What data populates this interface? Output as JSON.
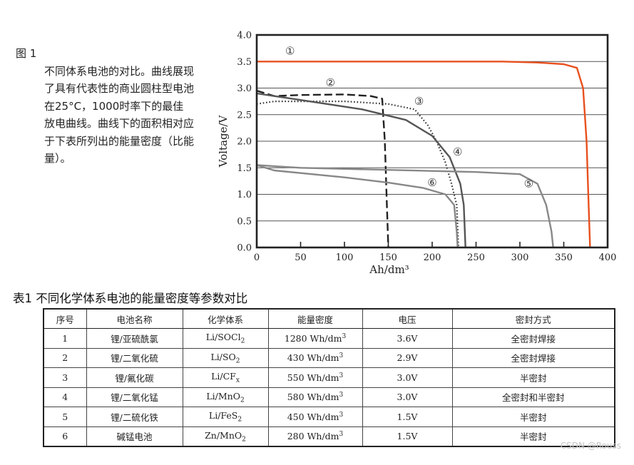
{
  "caption": {
    "head": "图 1",
    "body": "不同体系电池的对比。曲线展现了具有代表性的商业圆柱型电池在25°C，1000时率下的最佳放电曲线。曲线下的面积相对应于下表所列出的能量密度（比能量）。"
  },
  "chart_data": {
    "type": "line",
    "xlabel": "Ah/dm³",
    "ylabel": "Voltage/V",
    "xlim": [
      0,
      400
    ],
    "ylim": [
      0.0,
      4.0
    ],
    "x_ticks": [
      "0",
      "50",
      "100",
      "150",
      "200",
      "250",
      "300",
      "350",
      "400"
    ],
    "y_ticks": [
      "0.0",
      "0.5",
      "1.0",
      "1.5",
      "2.0",
      "2.5",
      "3.0",
      "3.5",
      "4.0"
    ],
    "grid": "horizontal",
    "series": [
      {
        "label": "①",
        "color": "#e8501e",
        "style": "solid",
        "points": [
          [
            0,
            3.5
          ],
          [
            100,
            3.5
          ],
          [
            200,
            3.5
          ],
          [
            280,
            3.5
          ],
          [
            320,
            3.48
          ],
          [
            350,
            3.45
          ],
          [
            365,
            3.38
          ],
          [
            372,
            3.0
          ],
          [
            376,
            2.0
          ],
          [
            378,
            1.0
          ],
          [
            380,
            0.0
          ]
        ]
      },
      {
        "label": "②",
        "color": "#222222",
        "style": "dashed",
        "points": [
          [
            0,
            2.95
          ],
          [
            10,
            2.9
          ],
          [
            20,
            2.85
          ],
          [
            50,
            2.87
          ],
          [
            100,
            2.88
          ],
          [
            130,
            2.85
          ],
          [
            143,
            2.8
          ],
          [
            146,
            2.0
          ],
          [
            148,
            1.0
          ],
          [
            150,
            0.0
          ]
        ]
      },
      {
        "label": "③",
        "color": "#333333",
        "style": "dotted",
        "points": [
          [
            0,
            2.7
          ],
          [
            20,
            2.75
          ],
          [
            100,
            2.75
          ],
          [
            150,
            2.7
          ],
          [
            180,
            2.6
          ],
          [
            195,
            2.3
          ],
          [
            205,
            2.0
          ],
          [
            215,
            1.6
          ],
          [
            222,
            1.2
          ],
          [
            228,
            0.8
          ],
          [
            230,
            0.0
          ]
        ]
      },
      {
        "label": "④",
        "color": "#555555",
        "style": "solid",
        "points": [
          [
            0,
            2.9
          ],
          [
            20,
            2.85
          ],
          [
            60,
            2.75
          ],
          [
            120,
            2.6
          ],
          [
            170,
            2.4
          ],
          [
            200,
            2.1
          ],
          [
            220,
            1.7
          ],
          [
            232,
            1.2
          ],
          [
            236,
            0.8
          ],
          [
            238,
            0.0
          ]
        ]
      },
      {
        "label": "⑤",
        "color": "#888888",
        "style": "solid",
        "points": [
          [
            0,
            1.55
          ],
          [
            50,
            1.5
          ],
          [
            150,
            1.46
          ],
          [
            250,
            1.42
          ],
          [
            300,
            1.38
          ],
          [
            320,
            1.2
          ],
          [
            330,
            0.8
          ],
          [
            336,
            0.3
          ],
          [
            338,
            0.0
          ]
        ]
      },
      {
        "label": "⑥",
        "color": "#888888",
        "style": "solid",
        "points": [
          [
            0,
            1.55
          ],
          [
            20,
            1.45
          ],
          [
            100,
            1.32
          ],
          [
            150,
            1.22
          ],
          [
            190,
            1.12
          ],
          [
            215,
            1.0
          ],
          [
            225,
            0.8
          ],
          [
            228,
            0.3
          ],
          [
            229,
            0.0
          ]
        ]
      }
    ],
    "annotations": [
      {
        "text": "①",
        "x": 38,
        "y": 3.7
      },
      {
        "text": "②",
        "x": 84,
        "y": 3.1
      },
      {
        "text": "③",
        "x": 185,
        "y": 2.75
      },
      {
        "text": "④",
        "x": 229,
        "y": 1.8
      },
      {
        "text": "⑤",
        "x": 310,
        "y": 1.2
      },
      {
        "text": "⑥",
        "x": 200,
        "y": 1.22
      }
    ]
  },
  "table": {
    "title": "表1  不同化学体系电池的能量密度等参数对比",
    "headers": [
      "序号",
      "电池名称",
      "化学体系",
      "能量密度",
      "电压",
      "密封方式"
    ],
    "rows": [
      {
        "no": "1",
        "name": "锂/亚硫酰氯",
        "chem_base": "Li/SOCl",
        "chem_sub": "2",
        "energy": "1280 Wh/dm",
        "energy_sup": "3",
        "voltage": "3.6V",
        "seal": "全密封焊接"
      },
      {
        "no": "2",
        "name": "锂/二氧化硫",
        "chem_base": "Li/SO",
        "chem_sub": "2",
        "energy": "430 Wh/dm",
        "energy_sup": "3",
        "voltage": "2.9V",
        "seal": "全密封焊接"
      },
      {
        "no": "3",
        "name": "锂/氟化碳",
        "chem_base": "Li/CF",
        "chem_sub": "x",
        "energy": "550 Wh/dm",
        "energy_sup": "3",
        "voltage": "3.0V",
        "seal": "半密封"
      },
      {
        "no": "4",
        "name": "锂/二氧化锰",
        "chem_base": "Li/MnO",
        "chem_sub": "2",
        "energy": "580 Wh/dm",
        "energy_sup": "3",
        "voltage": "3.0V",
        "seal": "全密封和半密封"
      },
      {
        "no": "5",
        "name": "锂/二硫化铁",
        "chem_base": "Li/FeS",
        "chem_sub": "2",
        "energy": "450 Wh/dm",
        "energy_sup": "3",
        "voltage": "1.5V",
        "seal": "半密封"
      },
      {
        "no": "6",
        "name": "碱锰电池",
        "chem_base": "Zn/MnO",
        "chem_sub": "2",
        "energy": "280 Wh/dm",
        "energy_sup": "3",
        "voltage": "1.5V",
        "seal": "半密封"
      }
    ]
  },
  "watermark": "CSDN @Rouss"
}
